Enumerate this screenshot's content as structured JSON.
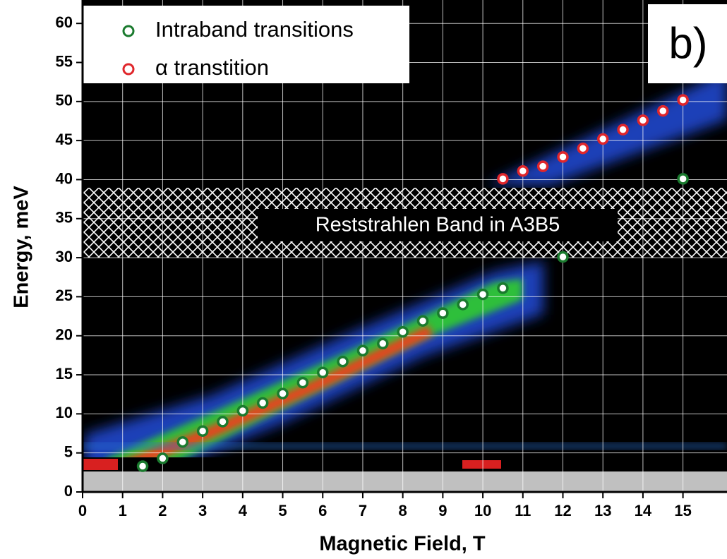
{
  "chart_data": {
    "type": "scatter",
    "xlabel": "Magnetic Field, T",
    "ylabel": "Energy, meV",
    "panel_label": "b)",
    "annotation": "Reststrahlen Band in A3B5",
    "xlim": [
      0,
      16.1
    ],
    "ylim": [
      0,
      63
    ],
    "xticks": [
      0,
      1,
      2,
      3,
      4,
      5,
      6,
      7,
      8,
      9,
      10,
      11,
      12,
      13,
      14,
      15
    ],
    "yticks": [
      0,
      5,
      10,
      15,
      20,
      25,
      30,
      35,
      40,
      45,
      50,
      55,
      60
    ],
    "grid": true,
    "series": [
      {
        "name": "Intraband transitions",
        "color": "#1a7a2e",
        "x": [
          1.5,
          2,
          2.5,
          3,
          3.5,
          4,
          4.5,
          5,
          5.5,
          6,
          6.5,
          7,
          7.5,
          8,
          8.5,
          9,
          9.5,
          10,
          10.5,
          12,
          15
        ],
        "values": [
          3.3,
          4.3,
          6.4,
          7.8,
          9.0,
          10.4,
          11.4,
          12.6,
          14.0,
          15.3,
          16.7,
          18.1,
          19.0,
          20.5,
          21.9,
          22.9,
          24.0,
          25.3,
          26.1,
          30.1,
          40.1
        ]
      },
      {
        "name": "α transtition",
        "color": "#e0262b",
        "x": [
          10.5,
          11,
          11.5,
          12,
          12.5,
          13,
          13.5,
          14,
          14.5,
          15
        ],
        "values": [
          40.1,
          41.1,
          41.7,
          42.9,
          44.0,
          45.2,
          46.4,
          47.6,
          48.8,
          50.2
        ]
      }
    ]
  }
}
